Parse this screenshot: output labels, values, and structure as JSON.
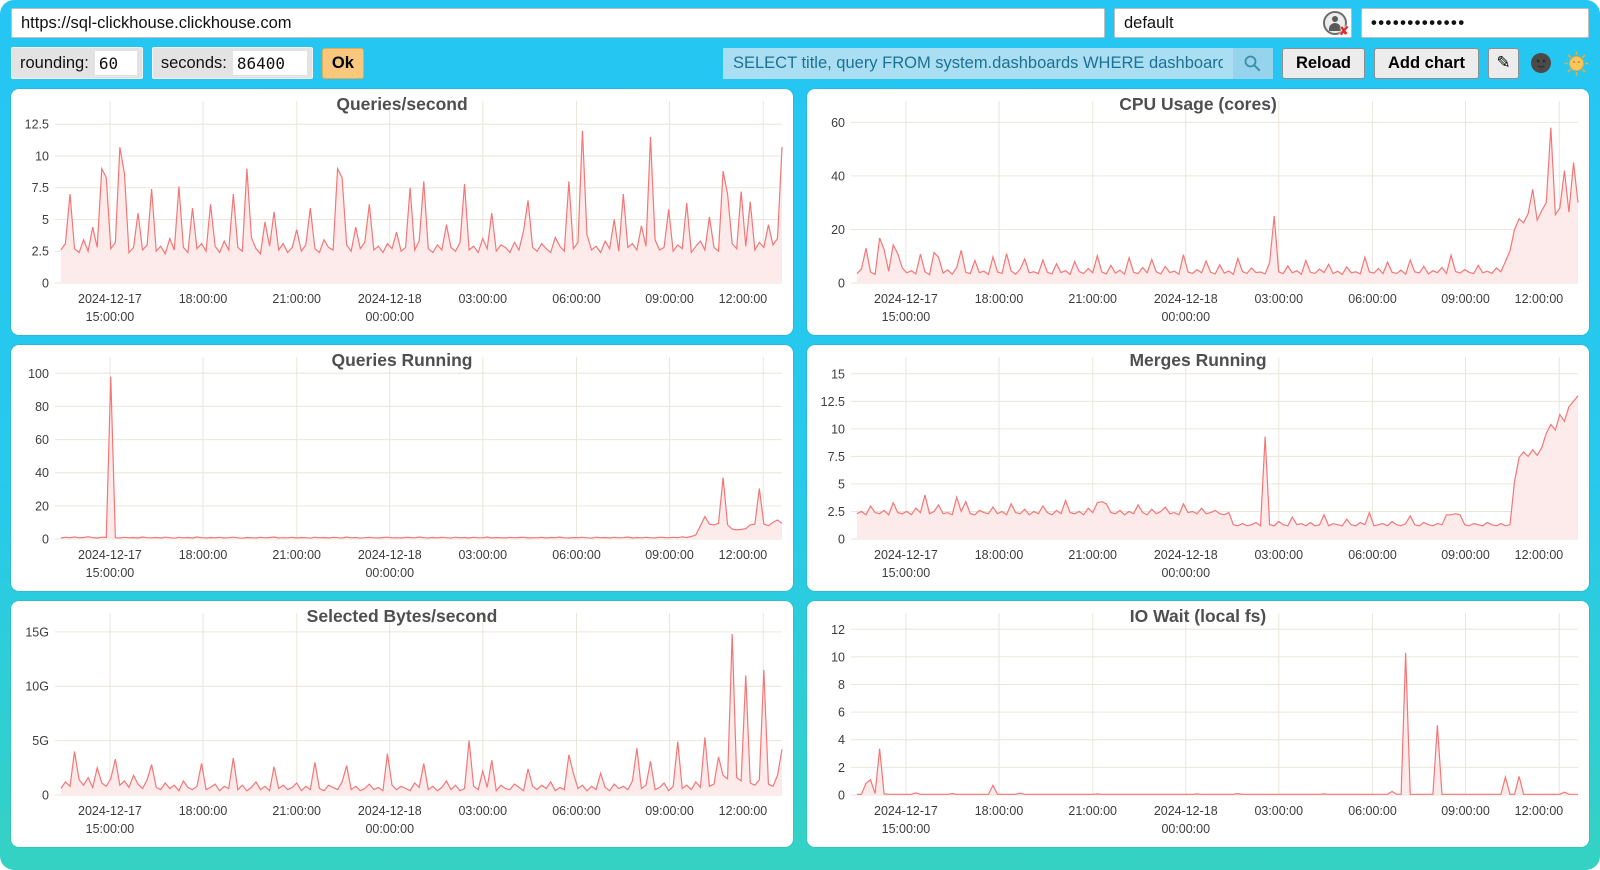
{
  "colors": {
    "background_top": "#25c6f3",
    "background_bottom": "#35d2c3",
    "line": "#f47777",
    "fill": "#fdeaea",
    "grid": "#eae6da",
    "ok_button": "#f9c87c",
    "query_bg": "#a9def3",
    "query_text": "#1d7291"
  },
  "topbar": {
    "url": "https://sql-clickhouse.clickhouse.com",
    "user": "default",
    "password_mask": "•••••••••••••"
  },
  "controls": {
    "rounding_label": "rounding:",
    "rounding_value": "60",
    "seconds_label": "seconds:",
    "seconds_value": "86400",
    "ok_label": "Ok",
    "query_value": "SELECT title, query FROM system.dashboards WHERE dashboard = '",
    "reload_label": "Reload",
    "add_chart_label": "Add chart",
    "edit_glyph": "✎"
  },
  "icons": {
    "user_status": "user-silhouette-in-circle-with-red-x",
    "search": "magnifier",
    "edit": "pencil",
    "theme_dark": "dark-moon-face",
    "theme_light": "sun-face"
  },
  "axis": {
    "x_ticks": [
      0.068,
      0.197,
      0.327,
      0.456,
      0.585,
      0.715,
      0.844,
      0.974
    ],
    "x_tick_labels": [
      [
        "2024-12-17",
        "15:00:00"
      ],
      [
        "18:00:00"
      ],
      [
        "21:00:00"
      ],
      [
        "2024-12-18",
        "00:00:00"
      ],
      [
        "03:00:00"
      ],
      [
        "06:00:00"
      ],
      [
        "09:00:00"
      ],
      [
        "12:00:00"
      ]
    ]
  },
  "chart_data": [
    {
      "type": "area",
      "title": "Queries/second",
      "ylim": [
        0,
        13.7
      ],
      "y_ticks": [
        0,
        2.5,
        5,
        7.5,
        10,
        12.5
      ],
      "y_tick_labels": [
        "0",
        "2.5",
        "5",
        "7.5",
        "10",
        "12.5"
      ],
      "xlabel": "",
      "ylabel": "",
      "legend": null,
      "grid": true,
      "line_color": "#f47777",
      "fill_color": "#fdeaea",
      "values": [
        2.6,
        3.1,
        7.0,
        2.7,
        2.4,
        3.4,
        2.5,
        4.4,
        2.8,
        9.0,
        8.3,
        2.7,
        3.2,
        10.7,
        8.6,
        2.4,
        2.8,
        5.5,
        2.6,
        3.0,
        7.4,
        2.5,
        2.9,
        2.3,
        3.5,
        2.6,
        7.6,
        2.8,
        2.4,
        5.9,
        2.7,
        3.1,
        2.5,
        6.2,
        2.9,
        2.4,
        3.3,
        2.6,
        7.0,
        2.8,
        2.5,
        9.0,
        3.6,
        2.7,
        2.3,
        4.8,
        2.9,
        5.6,
        2.6,
        3.1,
        2.4,
        2.8,
        4.2,
        2.5,
        3.0,
        5.9,
        2.7,
        2.4,
        3.4,
        2.8,
        2.6,
        9.0,
        8.3,
        3.0,
        2.5,
        4.4,
        2.7,
        3.2,
        6.2,
        2.6,
        2.9,
        2.4,
        3.1,
        2.7,
        4.0,
        2.5,
        2.8,
        7.5,
        2.6,
        3.3,
        8.0,
        2.7,
        2.4,
        3.0,
        2.6,
        4.6,
        2.8,
        2.5,
        3.2,
        7.8,
        2.6,
        2.9,
        2.4,
        3.5,
        2.7,
        5.5,
        2.5,
        3.0,
        2.8,
        2.4,
        3.2,
        2.6,
        4.1,
        6.5,
        2.8,
        2.5,
        3.1,
        2.7,
        2.4,
        3.6,
        2.9,
        2.5,
        8.0,
        2.7,
        3.2,
        12.0,
        3.8,
        2.6,
        2.9,
        2.4,
        3.3,
        2.7,
        5.0,
        2.5,
        7.0,
        2.8,
        3.1,
        2.6,
        4.5,
        2.9,
        11.5,
        3.4,
        2.6,
        2.8,
        5.8,
        2.5,
        3.0,
        2.7,
        6.3,
        2.4,
        2.9,
        3.3,
        2.6,
        5.2,
        2.8,
        2.5,
        8.8,
        7.0,
        3.1,
        2.7,
        7.2,
        2.9,
        6.4,
        2.6,
        3.2,
        2.8,
        4.6,
        3.0,
        3.5,
        10.7
      ]
    },
    {
      "type": "area",
      "title": "CPU Usage (cores)",
      "ylim": [
        0,
        65
      ],
      "y_ticks": [
        0,
        20,
        40,
        60
      ],
      "y_tick_labels": [
        "0",
        "20",
        "40",
        "60"
      ],
      "xlabel": "",
      "ylabel": "",
      "legend": null,
      "grid": true,
      "line_color": "#f47777",
      "fill_color": "#fdeaea",
      "values": [
        3.5,
        5.2,
        13.0,
        4.1,
        3.2,
        16.8,
        12.5,
        4.4,
        14.2,
        11.0,
        5.6,
        3.8,
        4.6,
        3.4,
        10.8,
        4.2,
        3.1,
        11.4,
        9.6,
        3.7,
        4.9,
        3.3,
        5.8,
        12.2,
        4.0,
        3.5,
        8.4,
        3.9,
        4.4,
        3.2,
        9.8,
        4.1,
        3.6,
        11.0,
        4.5,
        3.3,
        5.2,
        9.0,
        3.8,
        4.2,
        3.5,
        8.6,
        4.0,
        3.4,
        7.2,
        3.9,
        4.6,
        3.2,
        8.0,
        4.3,
        3.6,
        5.4,
        3.8,
        10.2,
        4.1,
        3.4,
        6.6,
        3.7,
        4.8,
        3.3,
        9.4,
        4.0,
        3.5,
        5.8,
        3.8,
        8.8,
        4.2,
        3.4,
        6.2,
        3.9,
        4.4,
        3.3,
        10.6,
        4.1,
        3.6,
        5.0,
        3.8,
        8.2,
        4.0,
        3.4,
        6.8,
        3.7,
        4.5,
        3.2,
        9.2,
        4.3,
        3.6,
        5.6,
        3.9,
        4.1,
        3.4,
        7.6,
        25.0,
        4.2,
        3.5,
        6.4,
        3.8,
        4.6,
        3.3,
        8.4,
        4.0,
        3.6,
        5.2,
        3.9,
        7.0,
        3.5,
        4.4,
        3.2,
        6.0,
        3.8,
        4.2,
        3.4,
        9.6,
        4.1,
        3.7,
        5.4,
        3.5,
        7.8,
        4.0,
        3.6,
        4.8,
        3.3,
        8.6,
        4.2,
        3.8,
        6.2,
        3.4,
        4.6,
        3.9,
        5.8,
        3.6,
        10.4,
        4.3,
        3.7,
        5.0,
        4.0,
        3.5,
        6.6,
        3.8,
        4.4,
        3.6,
        5.6,
        4.2,
        8.0,
        12.0,
        20.0,
        24.0,
        22.5,
        26.0,
        35.0,
        23.5,
        27.0,
        30.0,
        58.0,
        25.5,
        28.0,
        42.0,
        26.5,
        45.0,
        30.0
      ]
    },
    {
      "type": "area",
      "title": "Queries Running",
      "ylim": [
        0,
        105
      ],
      "y_ticks": [
        0,
        20,
        40,
        60,
        80,
        100
      ],
      "y_tick_labels": [
        "0",
        "20",
        "40",
        "60",
        "80",
        "100"
      ],
      "xlabel": "",
      "ylabel": "",
      "legend": null,
      "grid": true,
      "line_color": "#f47777",
      "fill_color": "#fdeaea",
      "values": [
        0.6,
        1.0,
        0.8,
        1.2,
        0.7,
        0.9,
        1.4,
        0.8,
        0.6,
        1.1,
        0.9,
        98.0,
        0.8,
        0.6,
        1.0,
        0.7,
        0.9,
        0.6,
        1.2,
        0.8,
        0.7,
        0.9,
        0.6,
        1.1,
        0.8,
        0.5,
        1.0,
        0.7,
        0.9,
        0.6,
        1.2,
        0.8,
        0.6,
        0.9,
        0.7,
        1.0,
        0.6,
        0.8,
        1.1,
        0.7,
        0.5,
        0.9,
        0.8,
        0.6,
        1.0,
        0.7,
        0.9,
        1.2,
        0.6,
        0.8,
        0.7,
        1.0,
        0.6,
        0.9,
        0.8,
        0.5,
        1.1,
        0.7,
        0.9,
        0.6,
        1.0,
        0.8,
        0.6,
        1.2,
        0.7,
        0.9,
        0.5,
        0.8,
        1.0,
        0.7,
        0.6,
        0.9,
        1.1,
        0.7,
        0.8,
        0.6,
        1.0,
        0.9,
        0.7,
        1.2,
        0.8,
        0.6,
        0.9,
        0.7,
        1.0,
        0.8,
        0.5,
        1.1,
        0.7,
        0.9,
        0.6,
        1.0,
        0.8,
        0.7,
        1.2,
        0.6,
        0.9,
        0.8,
        0.6,
        1.0,
        0.7,
        0.9,
        1.1,
        0.6,
        0.8,
        0.7,
        1.0,
        0.6,
        0.9,
        0.8,
        1.2,
        0.7,
        0.6,
        0.9,
        0.8,
        1.0,
        0.7,
        0.5,
        1.1,
        0.8,
        0.9,
        0.6,
        1.0,
        0.7,
        0.8,
        1.2,
        0.6,
        0.9,
        0.7,
        1.0,
        0.8,
        0.6,
        1.1,
        0.9,
        0.7,
        1.0,
        0.8,
        1.3,
        0.9,
        1.5,
        2.5,
        8.0,
        13.5,
        9.0,
        8.5,
        9.5,
        37.0,
        8.5,
        6.0,
        5.5,
        5.8,
        6.2,
        8.5,
        9.0,
        30.5,
        9.0,
        8.0,
        10.0,
        11.5,
        9.5
      ]
    },
    {
      "type": "area",
      "title": "Merges Running",
      "ylim": [
        0,
        15.8
      ],
      "y_ticks": [
        0,
        2.5,
        5,
        7.5,
        10,
        12.5,
        15
      ],
      "y_tick_labels": [
        "0",
        "2.5",
        "5",
        "7.5",
        "10",
        "12.5",
        "15"
      ],
      "xlabel": "",
      "ylabel": "",
      "legend": null,
      "grid": true,
      "line_color": "#f47777",
      "fill_color": "#fdeaea",
      "values": [
        2.3,
        2.5,
        2.2,
        3.0,
        2.4,
        2.3,
        2.6,
        2.2,
        3.3,
        2.4,
        2.3,
        2.5,
        2.2,
        2.8,
        2.4,
        4.0,
        2.3,
        2.5,
        3.1,
        2.3,
        2.4,
        2.2,
        3.8,
        2.5,
        3.4,
        2.3,
        2.2,
        2.6,
        2.4,
        2.3,
        2.9,
        2.3,
        2.5,
        2.2,
        3.2,
        2.4,
        2.3,
        2.7,
        2.2,
        2.5,
        2.3,
        3.0,
        2.4,
        2.2,
        2.6,
        2.3,
        3.5,
        2.4,
        2.3,
        2.5,
        2.2,
        2.8,
        2.4,
        3.3,
        3.4,
        3.2,
        2.4,
        2.3,
        2.6,
        2.2,
        2.5,
        2.3,
        3.1,
        2.4,
        2.2,
        2.7,
        2.3,
        2.5,
        2.9,
        2.3,
        2.4,
        2.2,
        3.2,
        2.4,
        2.5,
        2.3,
        2.8,
        2.3,
        2.4,
        2.6,
        2.3,
        2.2,
        2.4,
        1.3,
        1.2,
        1.4,
        1.2,
        1.3,
        1.5,
        1.2,
        9.3,
        1.3,
        1.2,
        1.6,
        1.3,
        1.2,
        2.0,
        1.3,
        1.4,
        1.2,
        1.5,
        1.2,
        1.3,
        2.2,
        1.2,
        1.4,
        1.3,
        1.2,
        1.8,
        1.3,
        1.2,
        1.5,
        1.3,
        2.4,
        1.2,
        1.3,
        1.4,
        1.2,
        1.6,
        1.3,
        1.2,
        1.4,
        2.1,
        1.3,
        1.2,
        1.5,
        1.3,
        1.2,
        1.4,
        1.3,
        2.2,
        2.2,
        2.3,
        2.2,
        1.3,
        1.2,
        1.4,
        1.3,
        1.2,
        1.5,
        1.3,
        1.2,
        1.4,
        1.2,
        1.3,
        5.2,
        7.4,
        7.9,
        7.5,
        8.1,
        7.6,
        8.3,
        9.6,
        10.4,
        9.9,
        11.3,
        10.7,
        12.0,
        12.5,
        13.0
      ]
    },
    {
      "type": "area",
      "title": "Selected Bytes/second",
      "ylim": [
        0,
        16
      ],
      "y_ticks": [
        0,
        5,
        10,
        15
      ],
      "y_tick_labels": [
        "0",
        "5G",
        "10G",
        "15G"
      ],
      "xlabel": "",
      "ylabel": "",
      "legend": null,
      "grid": true,
      "line_color": "#f47777",
      "fill_color": "#fdeaea",
      "values": [
        0.6,
        1.2,
        0.8,
        4.0,
        1.4,
        0.9,
        1.6,
        0.7,
        2.5,
        1.1,
        0.8,
        1.5,
        3.3,
        0.9,
        1.3,
        0.7,
        1.8,
        1.0,
        0.6,
        1.4,
        2.8,
        0.7,
        0.5,
        1.1,
        0.6,
        0.9,
        0.4,
        1.3,
        0.7,
        0.5,
        0.8,
        2.9,
        0.5,
        0.7,
        1.0,
        0.4,
        0.8,
        0.6,
        3.4,
        0.5,
        0.9,
        0.4,
        0.7,
        1.2,
        0.5,
        0.8,
        0.4,
        2.6,
        0.6,
        0.9,
        0.5,
        0.7,
        1.1,
        0.4,
        0.8,
        0.5,
        3.0,
        0.6,
        0.4,
        0.9,
        0.7,
        0.5,
        1.2,
        2.7,
        0.5,
        0.8,
        0.4,
        0.6,
        1.0,
        0.5,
        0.7,
        0.4,
        3.8,
        0.9,
        0.5,
        0.8,
        0.6,
        0.4,
        1.1,
        0.7,
        2.9,
        0.5,
        0.8,
        0.4,
        0.7,
        1.3,
        0.5,
        0.9,
        0.4,
        0.6,
        5.0,
        0.8,
        0.5,
        2.2,
        0.7,
        3.2,
        0.4,
        0.9,
        0.6,
        0.5,
        1.0,
        0.7,
        0.4,
        2.4,
        0.8,
        0.5,
        0.9,
        0.6,
        1.2,
        0.4,
        0.7,
        0.5,
        3.7,
        2.0,
        0.6,
        0.9,
        0.4,
        0.8,
        0.5,
        2.0,
        0.7,
        0.4,
        1.0,
        0.6,
        0.8,
        0.5,
        1.3,
        4.3,
        0.6,
        0.9,
        3.1,
        0.5,
        0.7,
        1.1,
        0.4,
        0.8,
        4.9,
        0.6,
        0.9,
        0.5,
        1.2,
        0.7,
        5.3,
        0.8,
        1.0,
        3.5,
        1.8,
        1.5,
        14.8,
        1.6,
        1.3,
        11.0,
        1.1,
        0.9,
        1.4,
        11.5,
        1.0,
        0.8,
        1.8,
        4.2
      ]
    },
    {
      "type": "area",
      "title": "IO Wait (local fs)",
      "ylim": [
        0,
        12.6
      ],
      "y_ticks": [
        0,
        2,
        4,
        6,
        8,
        10,
        12
      ],
      "y_tick_labels": [
        "0",
        "2",
        "4",
        "6",
        "8",
        "10",
        "12"
      ],
      "xlabel": "",
      "ylabel": "",
      "legend": null,
      "grid": true,
      "line_color": "#f47777",
      "fill_color": "#fdeaea",
      "values": [
        0.05,
        0.05,
        0.85,
        1.1,
        0.1,
        3.35,
        0.08,
        0.05,
        0.05,
        0.05,
        0.05,
        0.05,
        0.05,
        0.15,
        0.05,
        0.05,
        0.05,
        0.05,
        0.05,
        0.05,
        0.05,
        0.1,
        0.05,
        0.05,
        0.05,
        0.05,
        0.05,
        0.05,
        0.05,
        0.05,
        0.7,
        0.05,
        0.05,
        0.05,
        0.05,
        0.05,
        0.12,
        0.05,
        0.05,
        0.05,
        0.05,
        0.05,
        0.05,
        0.05,
        0.05,
        0.05,
        0.05,
        0.05,
        0.05,
        0.05,
        0.05,
        0.05,
        0.05,
        0.08,
        0.05,
        0.05,
        0.05,
        0.05,
        0.05,
        0.05,
        0.05,
        0.05,
        0.05,
        0.05,
        0.05,
        0.05,
        0.05,
        0.05,
        0.05,
        0.05,
        0.05,
        0.05,
        0.05,
        0.05,
        0.05,
        0.08,
        0.05,
        0.05,
        0.05,
        0.05,
        0.05,
        0.05,
        0.05,
        0.05,
        0.1,
        0.05,
        0.05,
        0.05,
        0.05,
        0.05,
        0.05,
        0.05,
        0.05,
        0.05,
        0.05,
        0.05,
        0.05,
        0.05,
        0.05,
        0.05,
        0.05,
        0.05,
        0.05,
        0.08,
        0.05,
        0.05,
        0.05,
        0.05,
        0.05,
        0.05,
        0.05,
        0.05,
        0.05,
        0.05,
        0.05,
        0.05,
        0.05,
        0.05,
        0.25,
        0.05,
        0.05,
        10.3,
        0.05,
        0.05,
        0.05,
        0.05,
        0.05,
        0.05,
        5.05,
        0.05,
        0.05,
        0.05,
        0.05,
        0.05,
        0.05,
        0.05,
        0.05,
        0.05,
        0.05,
        0.05,
        0.05,
        0.05,
        0.05,
        1.3,
        0.05,
        0.05,
        1.35,
        0.05,
        0.05,
        0.05,
        0.05,
        0.05,
        0.05,
        0.05,
        0.05,
        0.05,
        0.2,
        0.05,
        0.05,
        0.05
      ]
    }
  ]
}
